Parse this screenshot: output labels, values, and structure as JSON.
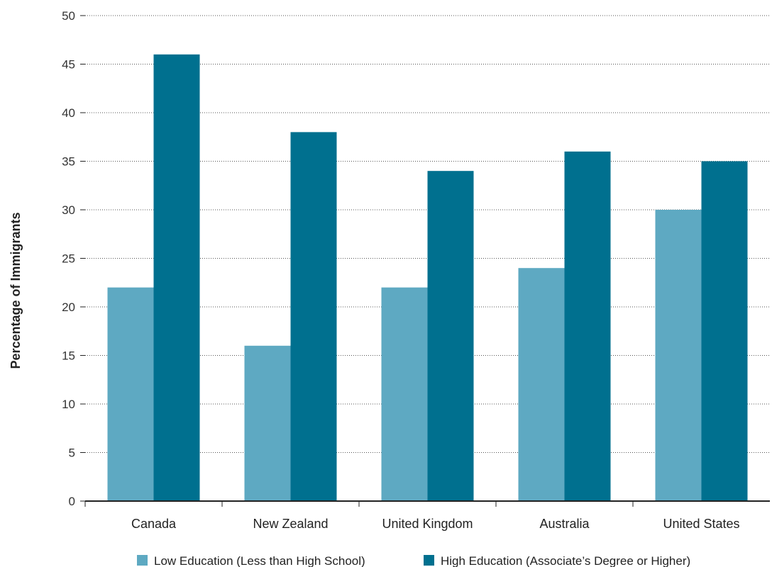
{
  "chart_data": {
    "type": "bar",
    "title": "",
    "xlabel": "",
    "ylabel": "Percentage of Immigrants",
    "categories": [
      "Canada",
      "New Zealand",
      "United Kingdom",
      "Australia",
      "United States"
    ],
    "series": [
      {
        "name": "Low Education (Less than High School)",
        "color": "#5ea9c2",
        "values": [
          22,
          16,
          22,
          24,
          30
        ]
      },
      {
        "name": "High Education (Associate’s Degree or Higher)",
        "color": "#00708f",
        "values": [
          46,
          38,
          34,
          36,
          35
        ]
      }
    ],
    "ylim": [
      0,
      50
    ],
    "yticks": [
      0,
      5,
      10,
      15,
      20,
      25,
      30,
      35,
      40,
      45,
      50
    ],
    "grid": true,
    "legend_position": "bottom"
  }
}
